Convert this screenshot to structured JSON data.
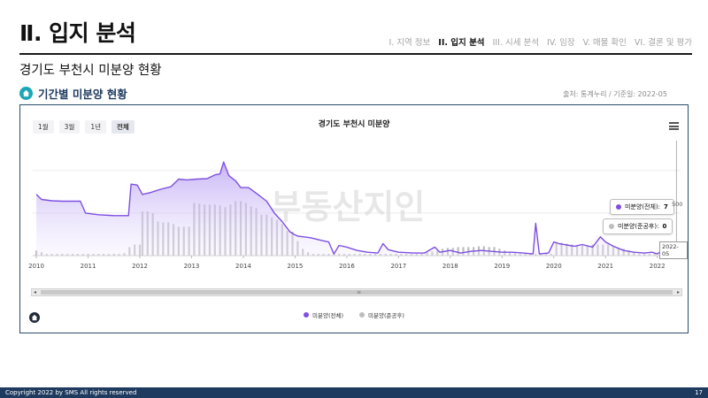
{
  "header": {
    "title": "Ⅱ. 입지 분석",
    "nav": [
      {
        "label": "I. 지역 정보",
        "active": false
      },
      {
        "label": "II. 입지 분석",
        "active": true
      },
      {
        "label": "III. 시세 분석",
        "active": false
      },
      {
        "label": "IV. 임장",
        "active": false
      },
      {
        "label": "V. 매물 확인",
        "active": false
      },
      {
        "label": "VI. 결론 및 평가",
        "active": false
      }
    ]
  },
  "subtitle": "경기도 부천시 미분양 현황",
  "section": {
    "title": "기간별 미분양 현황",
    "source": "출처: 통계누리 / 기준일: 2022-05"
  },
  "chart_controls": {
    "range_buttons": [
      "1월",
      "3월",
      "1년",
      "전체"
    ],
    "active_range": "전체"
  },
  "watermark": "부동산지인",
  "tooltip": {
    "total_label": "미분양(전체):",
    "total_value": "7",
    "completed_label": "미분양(준공후):",
    "completed_value": "0",
    "date": "2022-05",
    "axis_label": "500"
  },
  "colors": {
    "total": "#7e4fe0",
    "completed": "#bdbdbd",
    "area_top": "#b59cf3",
    "area_bottom": "#f3eefe",
    "header_bar": "#1e3a5f",
    "section_icon": "#1aa7b5"
  },
  "chart_data": {
    "type": "area",
    "title": "경기도 부천시 미분양",
    "xlabel": "",
    "ylabel": "",
    "x_ticks": [
      "2010",
      "2011",
      "2012",
      "2013",
      "2014",
      "2015",
      "2016",
      "2017",
      "2018",
      "2019",
      "2020",
      "2021",
      "2022"
    ],
    "ylim": [
      0,
      1300
    ],
    "y_tick_values": [
      500,
      1000
    ],
    "grid": true,
    "legend_position": "bottom",
    "series": [
      {
        "name": "미분양(전체)",
        "kind": "area",
        "points": [
          [
            2010.0,
            720
          ],
          [
            2010.1,
            660
          ],
          [
            2010.3,
            645
          ],
          [
            2010.5,
            640
          ],
          [
            2010.7,
            640
          ],
          [
            2010.85,
            640
          ],
          [
            2010.95,
            500
          ],
          [
            2011.2,
            480
          ],
          [
            2011.5,
            470
          ],
          [
            2011.7,
            470
          ],
          [
            2011.78,
            470
          ],
          [
            2011.83,
            840
          ],
          [
            2011.95,
            830
          ],
          [
            2012.05,
            720
          ],
          [
            2012.2,
            740
          ],
          [
            2012.4,
            780
          ],
          [
            2012.6,
            810
          ],
          [
            2012.75,
            900
          ],
          [
            2012.9,
            890
          ],
          [
            2013.1,
            900
          ],
          [
            2013.3,
            905
          ],
          [
            2013.45,
            950
          ],
          [
            2013.55,
            960
          ],
          [
            2013.62,
            1100
          ],
          [
            2013.72,
            940
          ],
          [
            2013.85,
            880
          ],
          [
            2013.95,
            800
          ],
          [
            2014.1,
            800
          ],
          [
            2014.3,
            710
          ],
          [
            2014.45,
            640
          ],
          [
            2014.6,
            500
          ],
          [
            2014.75,
            400
          ],
          [
            2014.9,
            280
          ],
          [
            2014.98,
            250
          ],
          [
            2015.05,
            230
          ],
          [
            2015.3,
            210
          ],
          [
            2015.5,
            180
          ],
          [
            2015.65,
            160
          ],
          [
            2015.75,
            20
          ],
          [
            2015.85,
            120
          ],
          [
            2016.0,
            100
          ],
          [
            2016.2,
            60
          ],
          [
            2016.4,
            40
          ],
          [
            2016.6,
            30
          ],
          [
            2016.7,
            140
          ],
          [
            2016.8,
            70
          ],
          [
            2017.0,
            40
          ],
          [
            2017.3,
            30
          ],
          [
            2017.5,
            30
          ],
          [
            2017.7,
            100
          ],
          [
            2017.8,
            40
          ],
          [
            2018.0,
            60
          ],
          [
            2018.2,
            30
          ],
          [
            2018.4,
            50
          ],
          [
            2018.6,
            60
          ],
          [
            2018.8,
            50
          ],
          [
            2019.0,
            40
          ],
          [
            2019.2,
            40
          ],
          [
            2019.4,
            30
          ],
          [
            2019.6,
            20
          ],
          [
            2019.65,
            380
          ],
          [
            2019.72,
            20
          ],
          [
            2019.9,
            30
          ],
          [
            2020.0,
            160
          ],
          [
            2020.1,
            140
          ],
          [
            2020.3,
            120
          ],
          [
            2020.4,
            110
          ],
          [
            2020.55,
            130
          ],
          [
            2020.75,
            100
          ],
          [
            2020.9,
            220
          ],
          [
            2021.0,
            160
          ],
          [
            2021.15,
            110
          ],
          [
            2021.35,
            60
          ],
          [
            2021.55,
            40
          ],
          [
            2021.75,
            30
          ],
          [
            2021.9,
            40
          ],
          [
            2022.0,
            20
          ],
          [
            2022.15,
            80
          ],
          [
            2022.3,
            40
          ],
          [
            2022.37,
            7
          ]
        ]
      },
      {
        "name": "미분양(준공후)",
        "kind": "bar",
        "points": [
          [
            2010.0,
            60
          ],
          [
            2010.1,
            40
          ],
          [
            2010.2,
            20
          ],
          [
            2010.3,
            20
          ],
          [
            2010.4,
            20
          ],
          [
            2010.5,
            20
          ],
          [
            2010.6,
            20
          ],
          [
            2010.7,
            20
          ],
          [
            2010.8,
            20
          ],
          [
            2010.9,
            20
          ],
          [
            2011.0,
            20
          ],
          [
            2011.1,
            20
          ],
          [
            2011.2,
            20
          ],
          [
            2011.3,
            20
          ],
          [
            2011.4,
            20
          ],
          [
            2011.5,
            20
          ],
          [
            2011.6,
            20
          ],
          [
            2011.7,
            30
          ],
          [
            2011.8,
            100
          ],
          [
            2011.9,
            130
          ],
          [
            2012.0,
            130
          ],
          [
            2012.05,
            520
          ],
          [
            2012.15,
            520
          ],
          [
            2012.25,
            500
          ],
          [
            2012.35,
            400
          ],
          [
            2012.45,
            390
          ],
          [
            2012.55,
            390
          ],
          [
            2012.65,
            370
          ],
          [
            2012.75,
            340
          ],
          [
            2012.85,
            340
          ],
          [
            2012.95,
            340
          ],
          [
            2013.05,
            620
          ],
          [
            2013.15,
            610
          ],
          [
            2013.25,
            600
          ],
          [
            2013.35,
            600
          ],
          [
            2013.45,
            600
          ],
          [
            2013.55,
            590
          ],
          [
            2013.65,
            570
          ],
          [
            2013.75,
            600
          ],
          [
            2013.85,
            640
          ],
          [
            2013.95,
            640
          ],
          [
            2014.05,
            620
          ],
          [
            2014.15,
            580
          ],
          [
            2014.25,
            560
          ],
          [
            2014.35,
            480
          ],
          [
            2014.45,
            480
          ],
          [
            2014.55,
            450
          ],
          [
            2014.65,
            420
          ],
          [
            2014.75,
            370
          ],
          [
            2014.85,
            290
          ],
          [
            2014.95,
            280
          ],
          [
            2015.05,
            170
          ],
          [
            2015.15,
            80
          ],
          [
            2015.25,
            40
          ],
          [
            2015.35,
            20
          ],
          [
            2015.45,
            20
          ],
          [
            2015.55,
            20
          ],
          [
            2015.65,
            20
          ],
          [
            2015.75,
            20
          ],
          [
            2015.85,
            20
          ],
          [
            2015.95,
            20
          ],
          [
            2016.05,
            20
          ],
          [
            2016.15,
            20
          ],
          [
            2016.25,
            20
          ],
          [
            2016.35,
            20
          ],
          [
            2016.45,
            20
          ],
          [
            2016.55,
            20
          ],
          [
            2016.65,
            20
          ],
          [
            2016.75,
            20
          ],
          [
            2016.85,
            20
          ],
          [
            2016.95,
            20
          ],
          [
            2017.05,
            20
          ],
          [
            2017.15,
            20
          ],
          [
            2017.25,
            20
          ],
          [
            2017.35,
            20
          ],
          [
            2017.45,
            20
          ],
          [
            2017.55,
            40
          ],
          [
            2017.65,
            50
          ],
          [
            2017.75,
            60
          ],
          [
            2017.85,
            80
          ],
          [
            2017.95,
            90
          ],
          [
            2018.05,
            90
          ],
          [
            2018.15,
            100
          ],
          [
            2018.25,
            100
          ],
          [
            2018.35,
            100
          ],
          [
            2018.45,
            100
          ],
          [
            2018.55,
            110
          ],
          [
            2018.65,
            110
          ],
          [
            2018.75,
            100
          ],
          [
            2018.85,
            100
          ],
          [
            2018.95,
            80
          ],
          [
            2019.05,
            60
          ],
          [
            2019.15,
            40
          ],
          [
            2019.25,
            30
          ],
          [
            2019.35,
            20
          ],
          [
            2019.45,
            20
          ],
          [
            2019.55,
            20
          ],
          [
            2019.65,
            20
          ],
          [
            2019.75,
            20
          ],
          [
            2019.85,
            20
          ],
          [
            2019.95,
            20
          ],
          [
            2020.05,
            160
          ],
          [
            2020.15,
            150
          ],
          [
            2020.25,
            140
          ],
          [
            2020.35,
            130
          ],
          [
            2020.45,
            120
          ],
          [
            2020.55,
            120
          ],
          [
            2020.65,
            120
          ],
          [
            2020.75,
            130
          ],
          [
            2020.85,
            130
          ],
          [
            2020.95,
            130
          ],
          [
            2021.05,
            130
          ],
          [
            2021.15,
            110
          ],
          [
            2021.25,
            90
          ],
          [
            2021.35,
            80
          ],
          [
            2021.45,
            60
          ],
          [
            2021.55,
            40
          ],
          [
            2021.65,
            20
          ],
          [
            2021.75,
            20
          ],
          [
            2021.85,
            20
          ],
          [
            2021.95,
            20
          ],
          [
            2022.05,
            20
          ],
          [
            2022.15,
            20
          ],
          [
            2022.25,
            20
          ],
          [
            2022.35,
            0
          ]
        ]
      }
    ]
  },
  "footer": {
    "copyright": "Copyright 2022 by SMS All rights reserved",
    "page": "17"
  }
}
